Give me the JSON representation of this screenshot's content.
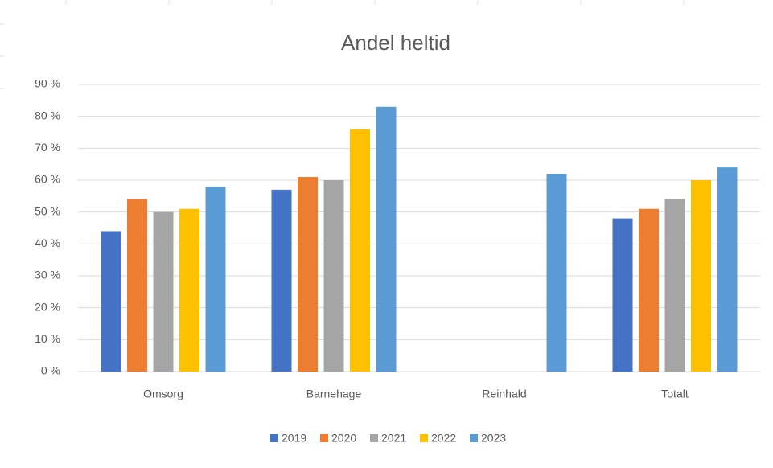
{
  "chart_data": {
    "type": "bar",
    "title": "Andel heltid",
    "categories": [
      "Omsorg",
      "Barnehage",
      "Reinhald",
      "Totalt"
    ],
    "series": [
      {
        "name": "2019",
        "color": "#4472c4",
        "values": [
          44,
          57,
          null,
          48
        ]
      },
      {
        "name": "2020",
        "color": "#ed7d31",
        "values": [
          54,
          61,
          null,
          51
        ]
      },
      {
        "name": "2021",
        "color": "#a5a5a5",
        "values": [
          50,
          60,
          null,
          54
        ]
      },
      {
        "name": "2022",
        "color": "#ffc000",
        "values": [
          51,
          76,
          null,
          60
        ]
      },
      {
        "name": "2023",
        "color": "#5b9bd5",
        "values": [
          58,
          83,
          62,
          64
        ]
      }
    ],
    "ylim": [
      0,
      90
    ],
    "yticks": [
      {
        "value": 0,
        "label": "0 %"
      },
      {
        "value": 10,
        "label": "10 %"
      },
      {
        "value": 20,
        "label": "20 %"
      },
      {
        "value": 30,
        "label": "30 %"
      },
      {
        "value": 40,
        "label": "40 %"
      },
      {
        "value": 50,
        "label": "50 %"
      },
      {
        "value": 60,
        "label": "60 %"
      },
      {
        "value": 70,
        "label": "70 %"
      },
      {
        "value": 80,
        "label": "80 %"
      },
      {
        "value": 90,
        "label": "90 %"
      }
    ],
    "grid": true,
    "legend": "bottom"
  }
}
